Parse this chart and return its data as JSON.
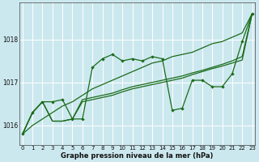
{
  "xlabel": "Graphe pression niveau de la mer (hPa)",
  "background_color": "#cce8ef",
  "grid_color": "#ffffff",
  "line_color": "#1a6b1a",
  "hours": [
    0,
    1,
    2,
    3,
    4,
    5,
    6,
    7,
    8,
    9,
    10,
    11,
    12,
    13,
    14,
    15,
    16,
    17,
    18,
    19,
    20,
    21,
    22,
    23
  ],
  "line1_jagged": [
    1015.8,
    1016.3,
    1016.55,
    1016.55,
    1016.6,
    1016.15,
    1016.15,
    1017.35,
    1017.55,
    1017.65,
    1017.5,
    1017.55,
    1017.5,
    1017.6,
    1017.55,
    1016.35,
    1016.4,
    1017.05,
    1017.05,
    1016.9,
    1016.9,
    1017.2,
    1017.95,
    1018.6
  ],
  "line2_straight": [
    1015.8,
    1016.0,
    1016.15,
    1016.3,
    1016.45,
    1016.55,
    1016.7,
    1016.85,
    1016.95,
    1017.05,
    1017.15,
    1017.25,
    1017.35,
    1017.45,
    1017.5,
    1017.6,
    1017.65,
    1017.7,
    1017.8,
    1017.9,
    1017.95,
    1018.05,
    1018.15,
    1018.6
  ],
  "line3_smooth": [
    1015.8,
    1016.3,
    1016.55,
    1016.1,
    1016.1,
    1016.15,
    1016.55,
    1016.6,
    1016.65,
    1016.7,
    1016.78,
    1016.85,
    1016.9,
    1016.95,
    1017.0,
    1017.05,
    1017.1,
    1017.18,
    1017.25,
    1017.32,
    1017.38,
    1017.45,
    1017.52,
    1018.6
  ],
  "line4_smooth": [
    1015.8,
    1016.3,
    1016.55,
    1016.1,
    1016.1,
    1016.15,
    1016.6,
    1016.65,
    1016.7,
    1016.75,
    1016.83,
    1016.9,
    1016.95,
    1017.0,
    1017.05,
    1017.1,
    1017.15,
    1017.22,
    1017.28,
    1017.35,
    1017.42,
    1017.5,
    1017.6,
    1018.6
  ],
  "ylim_min": 1015.55,
  "ylim_max": 1018.85,
  "yticks": [
    1016,
    1017,
    1018
  ],
  "xlim_min": -0.3,
  "xlim_max": 23.3
}
